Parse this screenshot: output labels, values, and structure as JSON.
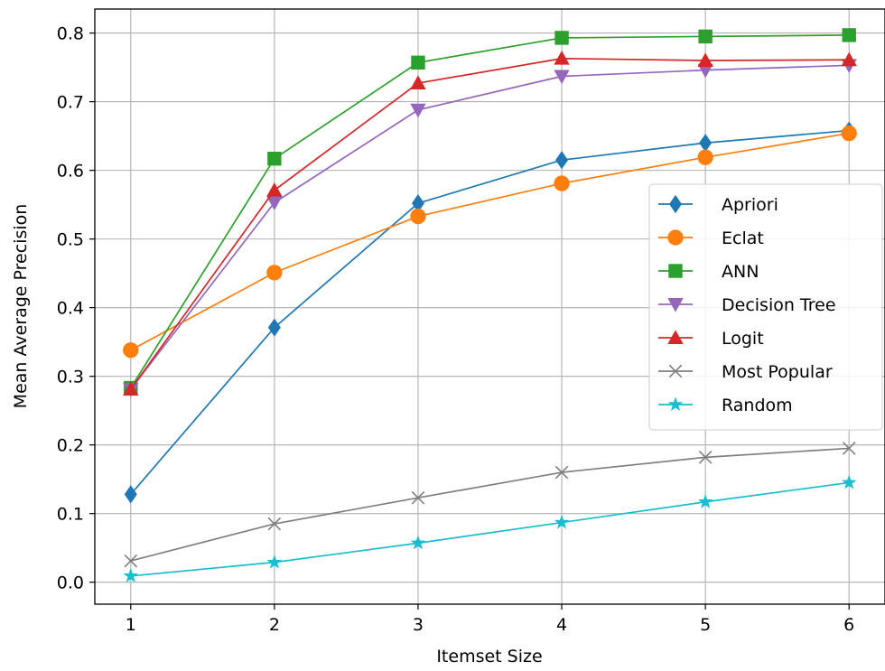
{
  "chart_data": {
    "type": "line",
    "title": "",
    "xlabel": "Itemset Size",
    "ylabel": "Mean Average Precision",
    "x": [
      1,
      2,
      3,
      4,
      5,
      6
    ],
    "xticks": [
      "1",
      "2",
      "3",
      "4",
      "5",
      "6"
    ],
    "yticks": [
      "0.0",
      "0.1",
      "0.2",
      "0.3",
      "0.4",
      "0.5",
      "0.6",
      "0.7",
      "0.8"
    ],
    "xlim": [
      0.75,
      6.25
    ],
    "ylim": [
      -0.032,
      0.835
    ],
    "grid": true,
    "legend_position": "right",
    "series": [
      {
        "name": "Apriori",
        "color": "#1f77b4",
        "marker": "diamond",
        "values": [
          0.128,
          0.371,
          0.552,
          0.615,
          0.64,
          0.658
        ]
      },
      {
        "name": "Eclat",
        "color": "#ff7f0e",
        "marker": "circle",
        "values": [
          0.338,
          0.451,
          0.533,
          0.581,
          0.619,
          0.654
        ]
      },
      {
        "name": "ANN",
        "color": "#2ca02c",
        "marker": "square",
        "values": [
          0.283,
          0.617,
          0.757,
          0.793,
          0.795,
          0.797
        ]
      },
      {
        "name": "Decision Tree",
        "color": "#9467bd",
        "marker": "triangle-down",
        "values": [
          0.281,
          0.553,
          0.688,
          0.737,
          0.746,
          0.753
        ]
      },
      {
        "name": "Logit",
        "color": "#d62728",
        "marker": "triangle-up",
        "values": [
          0.281,
          0.571,
          0.727,
          0.763,
          0.76,
          0.761
        ]
      },
      {
        "name": "Most Popular",
        "color": "#7f7f7f",
        "marker": "x",
        "values": [
          0.031,
          0.085,
          0.123,
          0.16,
          0.182,
          0.195
        ]
      },
      {
        "name": "Random",
        "color": "#17becf",
        "marker": "star",
        "values": [
          0.009,
          0.029,
          0.057,
          0.087,
          0.117,
          0.145
        ]
      }
    ]
  }
}
